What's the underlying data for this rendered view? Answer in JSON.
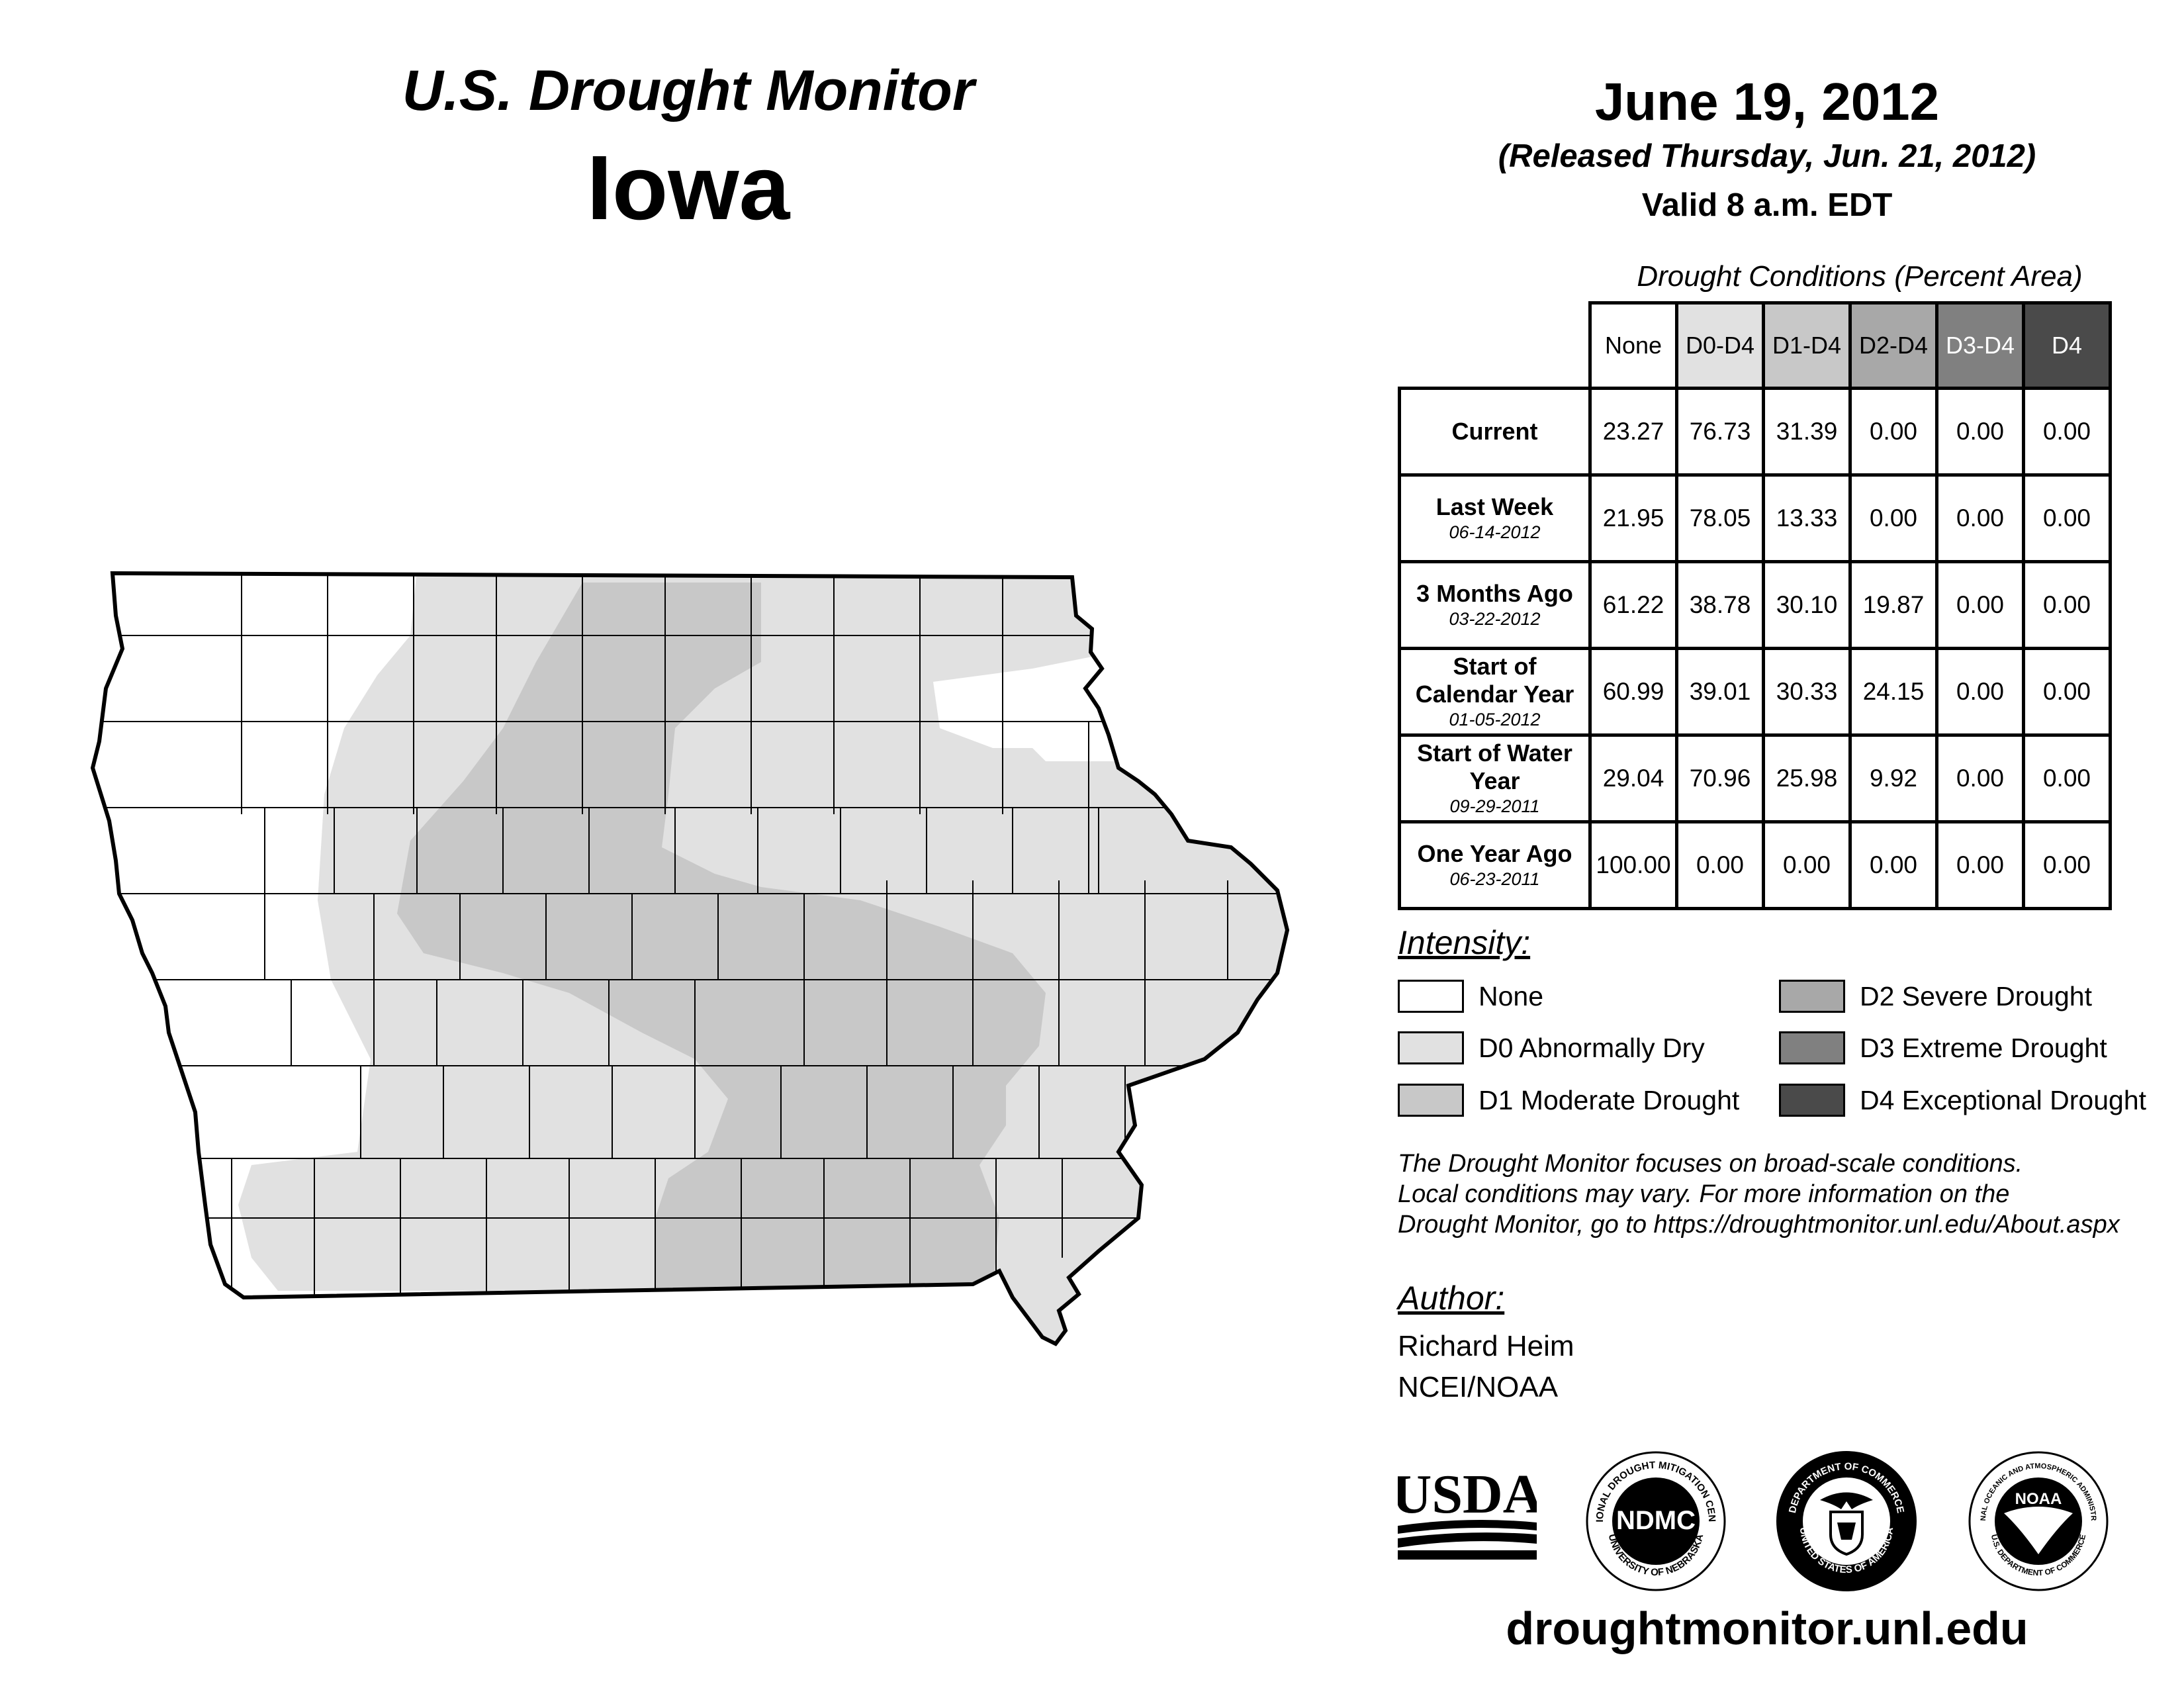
{
  "header": {
    "title": "U.S. Drought Monitor",
    "state": "Iowa",
    "date": "June 19, 2012",
    "released": "(Released Thursday, Jun. 21, 2012)",
    "valid": "Valid 8 a.m. EDT"
  },
  "table": {
    "caption": "Drought Conditions (Percent Area)",
    "columns": [
      "None",
      "D0-D4",
      "D1-D4",
      "D2-D4",
      "D3-D4",
      "D4"
    ],
    "rows": [
      {
        "label": "Current",
        "date": "",
        "values": [
          "23.27",
          "76.73",
          "31.39",
          "0.00",
          "0.00",
          "0.00"
        ]
      },
      {
        "label": "Last Week",
        "date": "06-14-2012",
        "values": [
          "21.95",
          "78.05",
          "13.33",
          "0.00",
          "0.00",
          "0.00"
        ]
      },
      {
        "label": "3 Months Ago",
        "date": "03-22-2012",
        "values": [
          "61.22",
          "38.78",
          "30.10",
          "19.87",
          "0.00",
          "0.00"
        ]
      },
      {
        "label": "Start of Calendar Year",
        "date": "01-05-2012",
        "values": [
          "60.99",
          "39.01",
          "30.33",
          "24.15",
          "0.00",
          "0.00"
        ]
      },
      {
        "label": "Start of Water Year",
        "date": "09-29-2011",
        "values": [
          "29.04",
          "70.96",
          "25.98",
          "9.92",
          "0.00",
          "0.00"
        ]
      },
      {
        "label": "One Year Ago",
        "date": "06-23-2011",
        "values": [
          "100.00",
          "0.00",
          "0.00",
          "0.00",
          "0.00",
          "0.00"
        ]
      }
    ]
  },
  "legend": {
    "title": "Intensity:",
    "items": [
      {
        "label": "None",
        "color": "#ffffff"
      },
      {
        "label": "D0 Abnormally Dry",
        "color": "#e1e1e1"
      },
      {
        "label": "D1 Moderate Drought",
        "color": "#c8c8c8"
      },
      {
        "label": "D2 Severe Drought",
        "color": "#a8a8a8"
      },
      {
        "label": "D3 Extreme Drought",
        "color": "#808080"
      },
      {
        "label": "D4 Exceptional Drought",
        "color": "#4a4a4a"
      }
    ]
  },
  "note": {
    "lines": [
      "The Drought Monitor focuses on broad-scale conditions.",
      "Local conditions may vary. For more information on the",
      "Drought Monitor, go to https://droughtmonitor.unl.edu/About.aspx"
    ]
  },
  "author": {
    "heading": "Author:",
    "name": "Richard Heim",
    "org": "NCEI/NOAA"
  },
  "logos": {
    "usda": "USDA",
    "ndmc": "NDMC",
    "ndmc_ring_top": "NATIONAL DROUGHT MITIGATION CENTER",
    "ndmc_ring_bottom": "UNIVERSITY OF NEBRASKA",
    "doc_ring_top": "DEPARTMENT OF COMMERCE",
    "doc_ring_bottom": "UNITED STATES OF AMERICA",
    "noaa": "NOAA",
    "noaa_ring_top": "NATIONAL OCEANIC AND ATMOSPHERIC ADMINISTRATION",
    "noaa_ring_bottom": "U.S. DEPARTMENT OF COMMERCE"
  },
  "footer": {
    "site": "droughtmonitor.unl.edu"
  }
}
